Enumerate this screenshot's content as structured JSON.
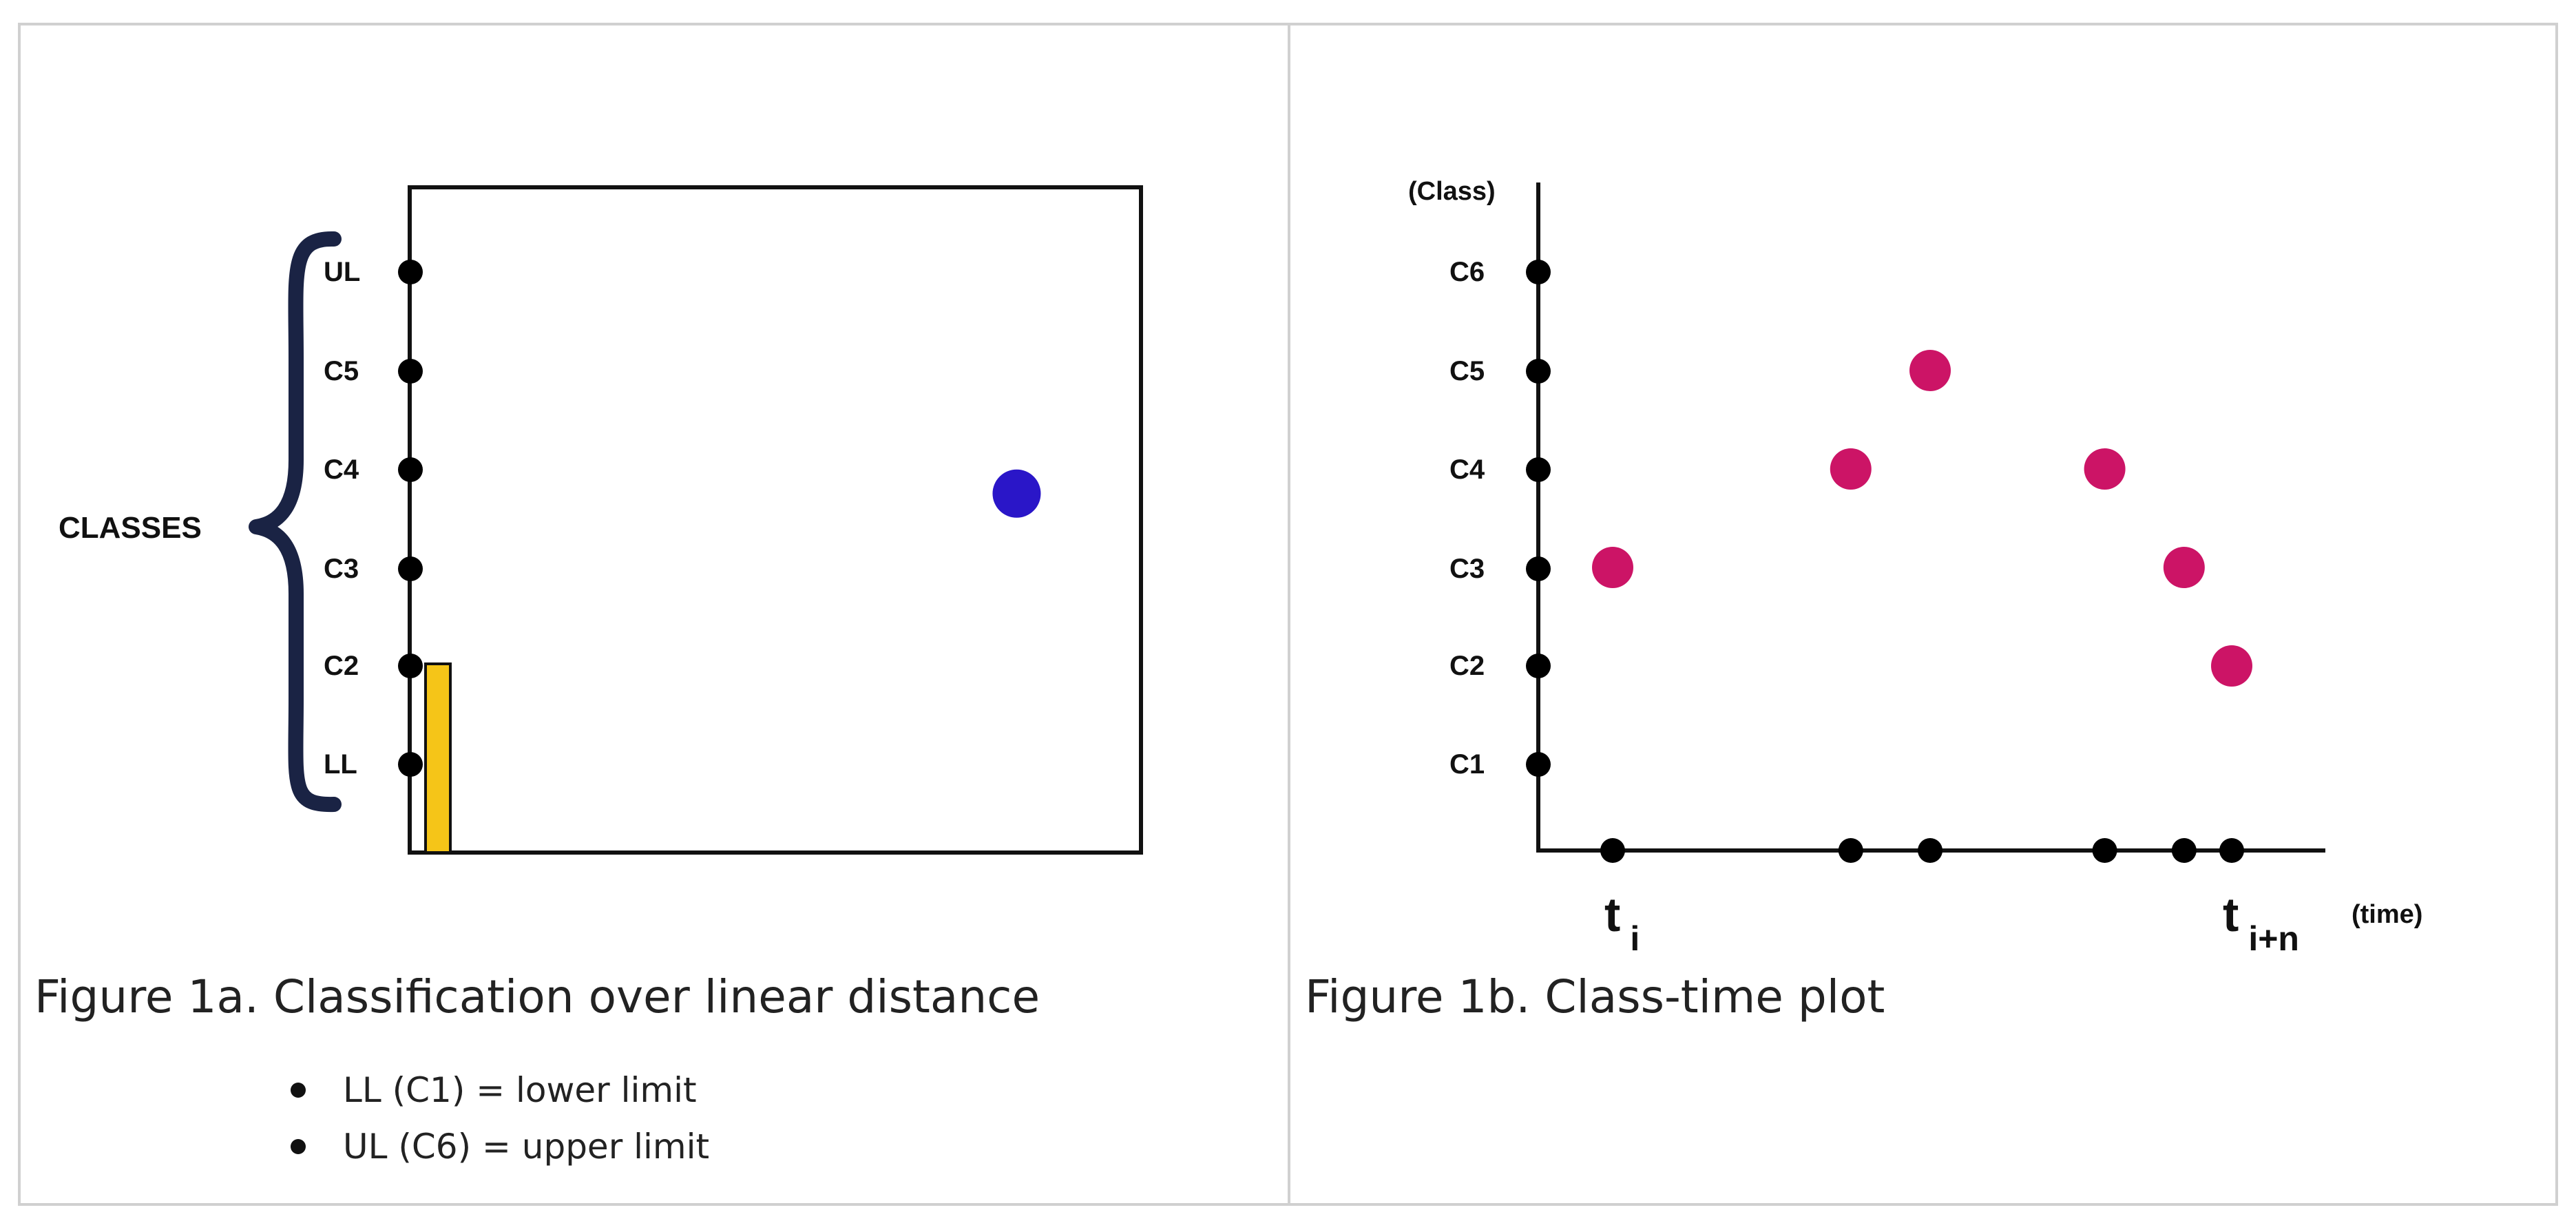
{
  "colors": {
    "frame": "#d0d0d0",
    "axis": "#111111",
    "dot": "#000000",
    "brace": "#1a2344",
    "bar": "#f5c518",
    "bar_outline": "#111111",
    "blue_dot": "#2a16c8",
    "magenta_dot": "#cc1466",
    "text": "#111111"
  },
  "figure_a": {
    "classes_label": "CLASSES",
    "levels": [
      "LL",
      "C2",
      "C3",
      "C4",
      "C5",
      "UL"
    ],
    "caption": "Figure 1a. Classification over linear distance",
    "notes": [
      "LL (C1) = lower limit",
      "UL (C6) = upper limit"
    ],
    "bar_top_level": "C2",
    "blue_point_level": 3.75,
    "blue_point_position": 0.83
  },
  "figure_b": {
    "y_title": "(Class)",
    "x_title": "(time)",
    "classes": [
      "C1",
      "C2",
      "C3",
      "C4",
      "C5",
      "C6"
    ],
    "caption": "Figure 1b. Class-time plot",
    "x_start_label": {
      "base": "t",
      "sub": "i"
    },
    "x_end_label": {
      "base": "t",
      "sub": "i+n"
    },
    "points": [
      {
        "t": 1,
        "class": "C3"
      },
      {
        "t": 4,
        "class": "C4"
      },
      {
        "t": 5,
        "class": "C5"
      },
      {
        "t": 7.2,
        "class": "C4"
      },
      {
        "t": 8.2,
        "class": "C3"
      },
      {
        "t": 8.8,
        "class": "C2"
      }
    ]
  }
}
